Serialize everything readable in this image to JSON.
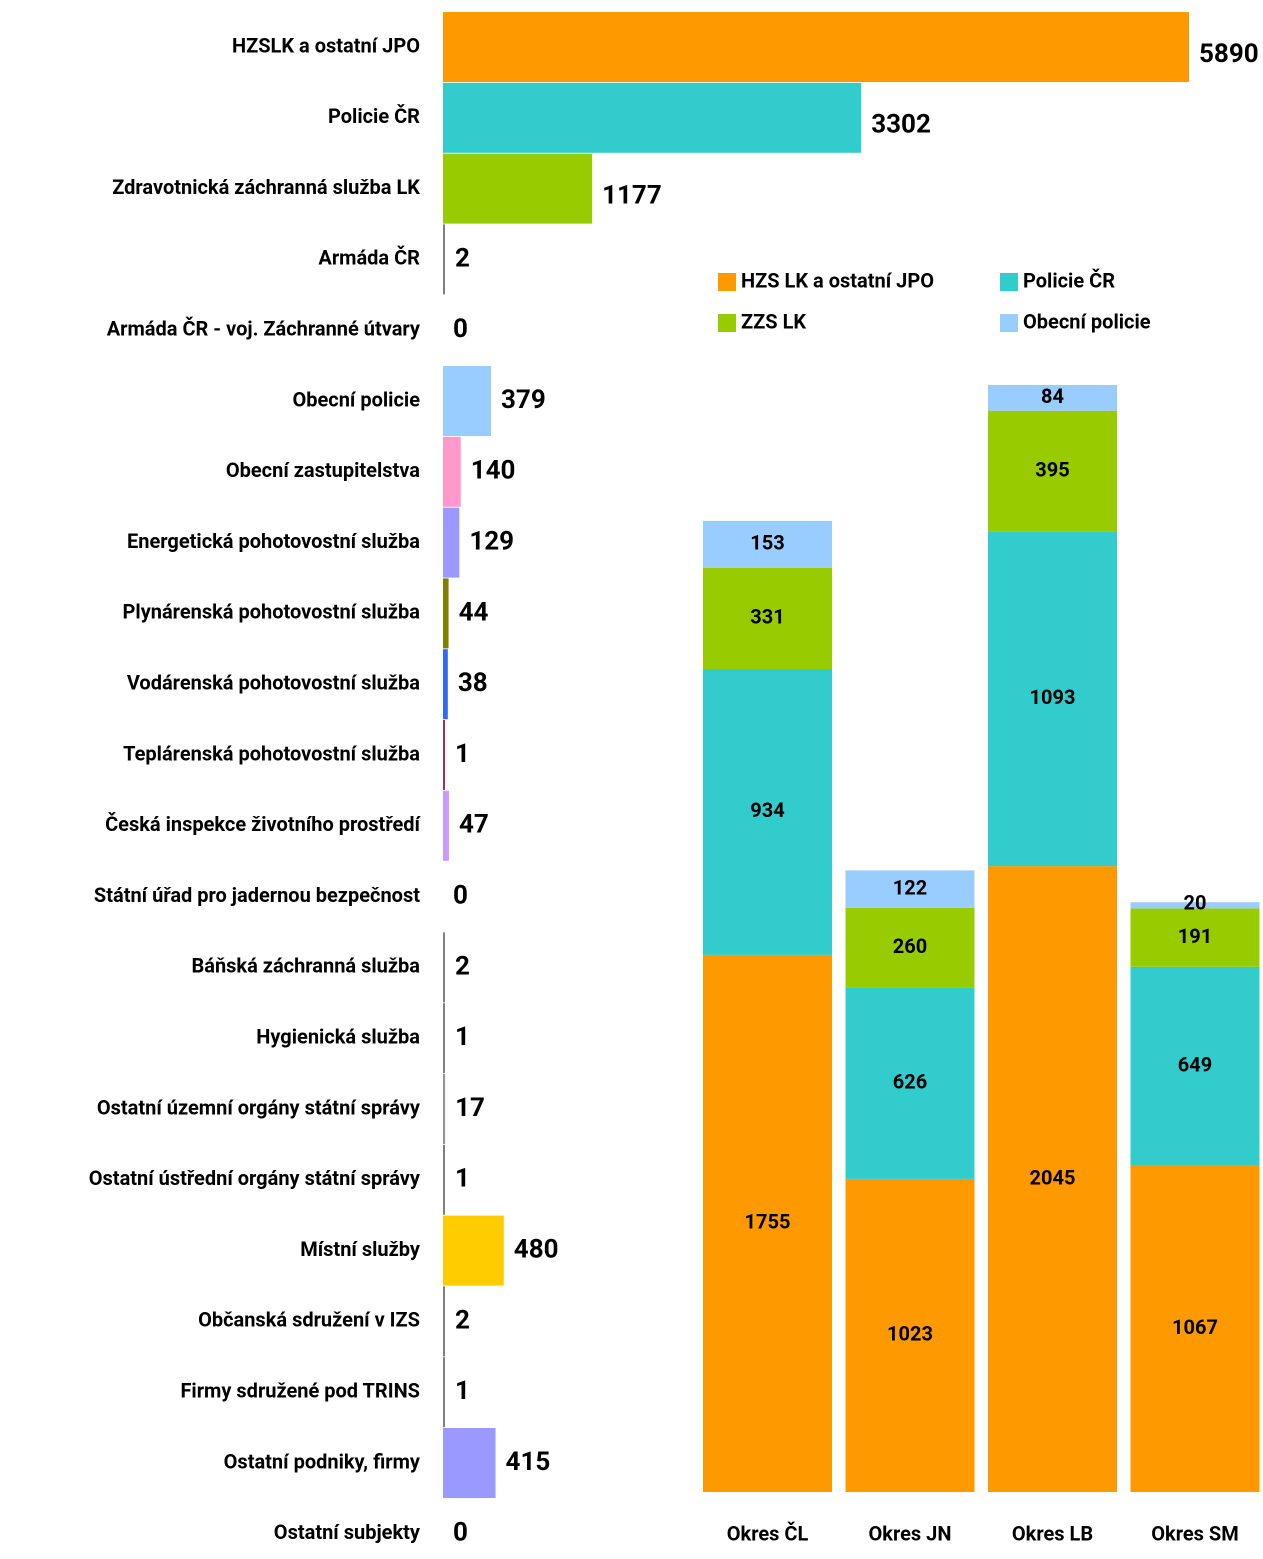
{
  "chart_data": [
    {
      "type": "hbar",
      "categories": [
        "HZSLK a ostatní JPO",
        "Policie ČR",
        "Zdravotnická záchranná služba LK",
        "Armáda ČR",
        "Armáda ČR - voj. Záchranné útvary",
        "Obecní policie",
        "Obecní zastupitelstva",
        "Energetická pohotovostní služba",
        "Plynárenská pohotovostní služba",
        "Vodárenská pohotovostní služba",
        "Teplárenská pohotovostní služba",
        "Česká inspekce životního prostředí",
        "Státní úřad pro jadernou bezpečnost",
        "Báňská záchranná služba",
        "Hygienická služba",
        "Ostatní územní orgány státní správy",
        "Ostatní ústřední orgány státní správy",
        "Místní služby",
        "Občanská sdružení v IZS",
        "Firmy sdružené pod TRINS",
        "Ostatní podniky, firmy",
        "Ostatní subjekty"
      ],
      "values": [
        5890,
        3302,
        1177,
        2,
        0,
        379,
        140,
        129,
        44,
        38,
        1,
        47,
        0,
        2,
        1,
        17,
        1,
        480,
        2,
        1,
        415,
        0
      ],
      "colors": [
        "#ff9900",
        "#33cccc",
        "#99cc00",
        "#808080",
        "#808080",
        "#99ccff",
        "#ff99cc",
        "#9999ff",
        "#808000",
        "#3366ff",
        "#993366",
        "#cc99ff",
        "#808080",
        "#808080",
        "#808080",
        "#969696",
        "#808080",
        "#ffcc00",
        "#808080",
        "#808080",
        "#9999ff",
        "#808080"
      ]
    },
    {
      "type": "stacked-bar",
      "categories": [
        "Okres ČL",
        "Okres JN",
        "Okres LB",
        "Okres SM"
      ],
      "series": [
        {
          "name": "HZS LK a ostatní JPO",
          "color": "#ff9900",
          "values": [
            1755,
            1023,
            2045,
            1067
          ]
        },
        {
          "name": "Policie ČR",
          "color": "#33cccc",
          "values": [
            934,
            626,
            1093,
            649
          ]
        },
        {
          "name": "ZZS LK",
          "color": "#99cc00",
          "values": [
            331,
            260,
            395,
            191
          ]
        },
        {
          "name": "Obecní policie",
          "color": "#99ccff",
          "values": [
            153,
            122,
            84,
            20
          ]
        }
      ]
    }
  ]
}
